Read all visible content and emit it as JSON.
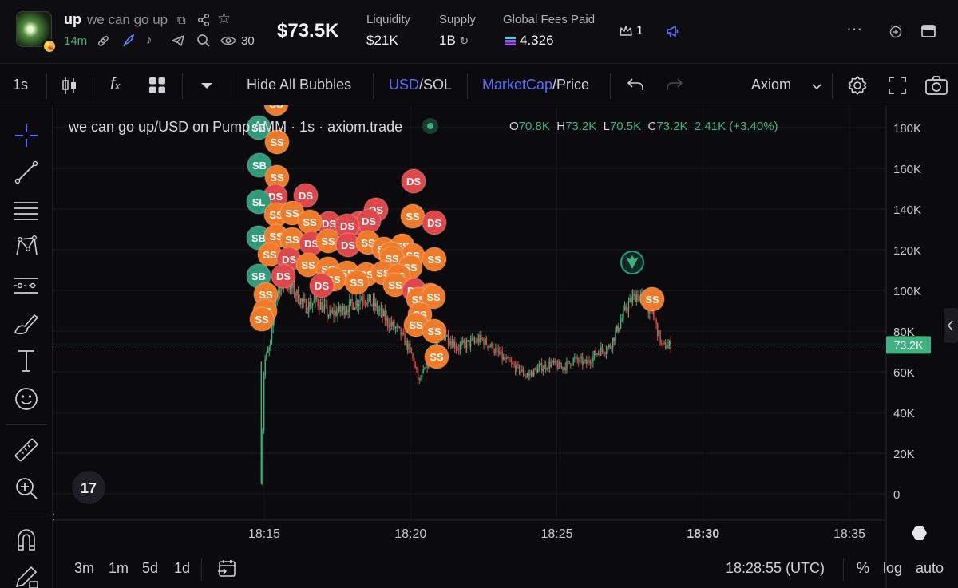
{
  "token": {
    "ticker": "up",
    "name": "we can go up",
    "age": "14m",
    "views": "30",
    "market_cap": "$73.5K",
    "stats": [
      {
        "label": "Liquidity",
        "value": "$21K"
      },
      {
        "label": "Supply",
        "value": "1B"
      },
      {
        "label": "Global Fees Paid",
        "value": "4.326"
      }
    ],
    "top_holders": "1"
  },
  "toolbar": {
    "interval": "1s",
    "hide_bubbles": "Hide All Bubbles",
    "currency_active": "USD",
    "currency_other": "/SOL",
    "metric_active": "MarketCap",
    "metric_other": "/Price",
    "source": "Axiom"
  },
  "chart": {
    "legend": "we can go up/USD on Pump AMM · 1s · axiom.trade",
    "ohlc": {
      "o": "70.8K",
      "h": "73.2K",
      "l": "70.5K",
      "c": "73.2K",
      "change": "2.41K (+3.40%)"
    },
    "ohlc_prefixes": {
      "o": "O",
      "h": "H",
      "l": "L",
      "c": "C"
    },
    "last_price_label": "73.2K",
    "colors": {
      "up": "#3fb27f",
      "down": "#e0524e",
      "sell_bubble": "#f07a28",
      "dev_sell_bubble": "#e0464a",
      "buy_bubble": "#2f9b78",
      "accent": "#5b6bff"
    },
    "bubble_labels": {
      "sell": "SS",
      "dev_sell": "DS",
      "buy": "SB",
      "buy_alt": "SL"
    }
  },
  "chart_data": {
    "type": "line",
    "title": "we can go up/USD on Pump AMM · 1s · axiom.trade",
    "x_ticks": [
      "18:15",
      "18:20",
      "18:25",
      "18:30",
      "18:35"
    ],
    "y_ticks": [
      "180K",
      "160K",
      "140K",
      "120K",
      "100K",
      "80K",
      "60K",
      "40K",
      "20K",
      "0"
    ],
    "ylim": [
      0,
      190000
    ],
    "xlim_minutes": [
      13.0,
      35.8
    ],
    "last_value": 73200,
    "series": [
      {
        "x": [
          "18:14.9",
          "18:15.0",
          "18:15.2",
          "18:15.4",
          "18:15.7",
          "18:16.0",
          "18:16.4",
          "18:16.8",
          "18:17.2",
          "18:17.6",
          "18:18.0",
          "18:18.4",
          "18:18.8",
          "18:19.2",
          "18:19.6",
          "18:20.0",
          "18:20.3",
          "18:20.6",
          "18:20.9",
          "18:21.2",
          "18:21.6",
          "18:22.0",
          "18:22.4",
          "18:22.8",
          "18:23.2",
          "18:23.6",
          "18:24.0",
          "18:24.4",
          "18:24.8",
          "18:25.2",
          "18:25.6",
          "18:26.0",
          "18:26.4",
          "18:26.8",
          "18:27.1",
          "18:27.4",
          "18:27.7",
          "18:28.0",
          "18:28.3",
          "18:28.6",
          "18:28.9"
        ],
        "values": [
          5000,
          65000,
          72000,
          98000,
          105000,
          100000,
          92000,
          95000,
          88000,
          90000,
          93000,
          97000,
          92000,
          85000,
          80000,
          70000,
          55000,
          65000,
          75000,
          78000,
          72000,
          74000,
          76000,
          72000,
          66000,
          62000,
          58000,
          62000,
          64000,
          62000,
          66000,
          64000,
          70000,
          72000,
          82000,
          92000,
          98000,
          95000,
          88000,
          72000,
          73200
        ]
      }
    ]
  },
  "bottom": {
    "ranges": [
      "3m",
      "1m",
      "5d",
      "1d"
    ],
    "time": "18:28:55 (UTC)",
    "percent": "%",
    "log": "log",
    "auto": "auto"
  }
}
